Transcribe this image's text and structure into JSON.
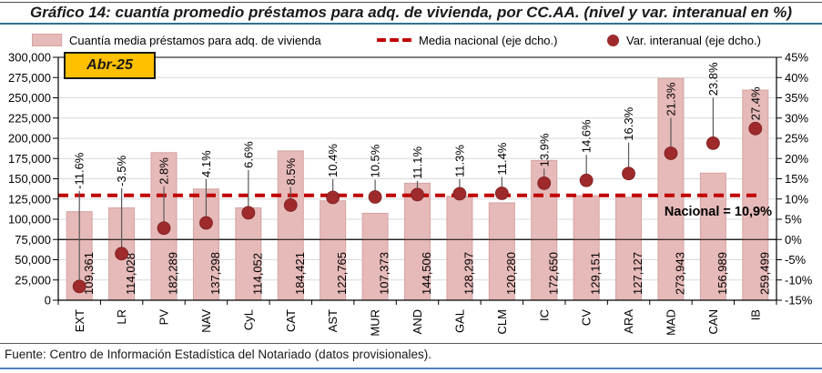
{
  "header": {
    "title": "Gráfico 14: cuantía promedio préstamos para adq. de vivienda, por CC.AA. (nivel y var. interanual en %)"
  },
  "legend": {
    "bars_label": "Cuantía media préstamos para adq. de vivienda",
    "national_label": "Media nacional (eje dcho.)",
    "variation_label": "Var. interanual (eje dcho.)"
  },
  "footer": {
    "source": "Fuente: Centro de Información Estadística del Notariado (datos provisionales)."
  },
  "chart_data": {
    "type": "bar",
    "title": "Gráfico 14: cuantía promedio préstamos para adq. de vivienda, por CC.AA. (nivel y var. interanual en %)",
    "badge": "Abr-25",
    "categories": [
      "EXT",
      "LR",
      "PV",
      "NAV",
      "CyL",
      "CAT",
      "AST",
      "MUR",
      "AND",
      "GAL",
      "CLM",
      "IC",
      "CV",
      "ARA",
      "MAD",
      "CAN",
      "IB"
    ],
    "series": [
      {
        "name": "Cuantía media préstamos para adq. de vivienda",
        "type": "bar",
        "axis": "left",
        "values": [
          109361,
          114028,
          182289,
          137298,
          114052,
          184421,
          122765,
          107373,
          144506,
          128297,
          120280,
          172650,
          129151,
          127127,
          273943,
          156989,
          259499
        ]
      },
      {
        "name": "Var. interanual (eje dcho.)",
        "type": "scatter",
        "axis": "right",
        "values": [
          -11.6,
          -3.5,
          2.8,
          4.1,
          6.6,
          8.5,
          10.4,
          10.5,
          11.1,
          11.3,
          11.4,
          13.9,
          14.6,
          16.3,
          21.3,
          23.8,
          27.4
        ]
      },
      {
        "name": "Media nacional (eje dcho.)",
        "type": "line-dashed",
        "axis": "right",
        "value": 10.9
      }
    ],
    "left_axis": {
      "min": 0,
      "max": 300000,
      "step": 25000,
      "format": "thousands"
    },
    "right_axis": {
      "min": -15,
      "max": 45,
      "step": 5,
      "format": "percent"
    },
    "annotation": {
      "text": "Nacional = 10,9%"
    },
    "colors": {
      "bar": "#e6bab9",
      "bar_border": "#d5a3a2",
      "dot": "#9e2a2b",
      "national_line": "#c00000",
      "annotation": "#c00000",
      "badge_bg": "#ffc000",
      "grid": "#d9d9d9",
      "axis": "#000000",
      "leader": "#595959"
    },
    "layout": {
      "legend_position": "top",
      "grid": true,
      "leader_gaps": [
        107,
        74,
        48,
        50,
        49,
        22,
        22,
        21,
        17,
        18,
        20,
        18,
        30,
        36,
        41,
        52,
        9
      ]
    }
  }
}
